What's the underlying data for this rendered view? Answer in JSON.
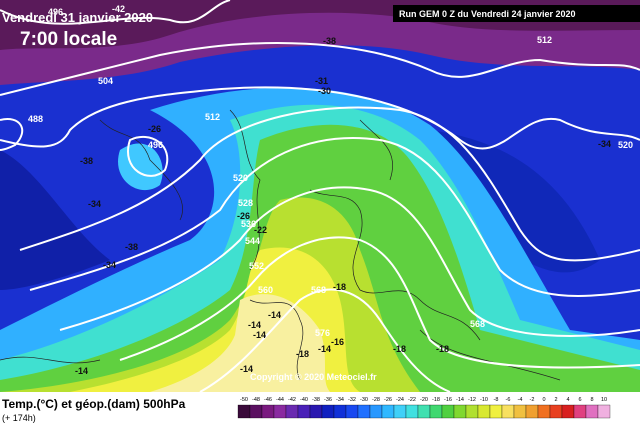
{
  "header": {
    "date": "Vendredi 31 janvier 2020",
    "time": "7:00 locale",
    "run": "Run GEM 0 Z du Vendredi 24 janvier 2020"
  },
  "map": {
    "labels": [
      "-42",
      "496",
      "488",
      "504",
      "-26",
      "496",
      "512",
      "-34",
      "-38",
      "-34",
      "-38",
      "-38",
      "-31",
      "-30",
      "512",
      "-34",
      "520",
      "520",
      "528",
      "-26",
      "536",
      "-22",
      "544",
      "552",
      "560",
      "568",
      "-18",
      "-14",
      "-14",
      "-14",
      "576",
      "-16",
      "-14",
      "-18",
      "-14",
      "-18",
      "-18",
      "568",
      "-14"
    ],
    "copyright": "Copyright © 2020 Meteociel.fr"
  },
  "footer": {
    "title": "Temp.(°C) et géop.(dam) 500hPa",
    "lead": "(+ 174h)"
  },
  "legend": {
    "labels": [
      "-50",
      "-48",
      "-46",
      "-44",
      "-42",
      "-40",
      "-38",
      "-36",
      "-34",
      "-32",
      "-30",
      "-28",
      "-26",
      "-24",
      "-22",
      "-20",
      "-18",
      "-16",
      "-14",
      "-12",
      "-10",
      "-8",
      "-6",
      "-4",
      "-2",
      "0",
      "2",
      "4",
      "6",
      "8",
      "10"
    ],
    "colors": [
      "#3a0a3a",
      "#5a1060",
      "#7a1a80",
      "#8a2aa0",
      "#6a2ab0",
      "#4a20b8",
      "#2a18b0",
      "#1020c0",
      "#1030d8",
      "#1848f0",
      "#2070ff",
      "#2898ff",
      "#30b8ff",
      "#40d0f8",
      "#40e0e0",
      "#40e0b0",
      "#40d870",
      "#50d040",
      "#80d830",
      "#b0e030",
      "#d8e830",
      "#f0f040",
      "#f8e060",
      "#f0c040",
      "#f0a030",
      "#f07020",
      "#e84020",
      "#d82020",
      "#e04080",
      "#e070c0",
      "#f0b0e0"
    ]
  }
}
